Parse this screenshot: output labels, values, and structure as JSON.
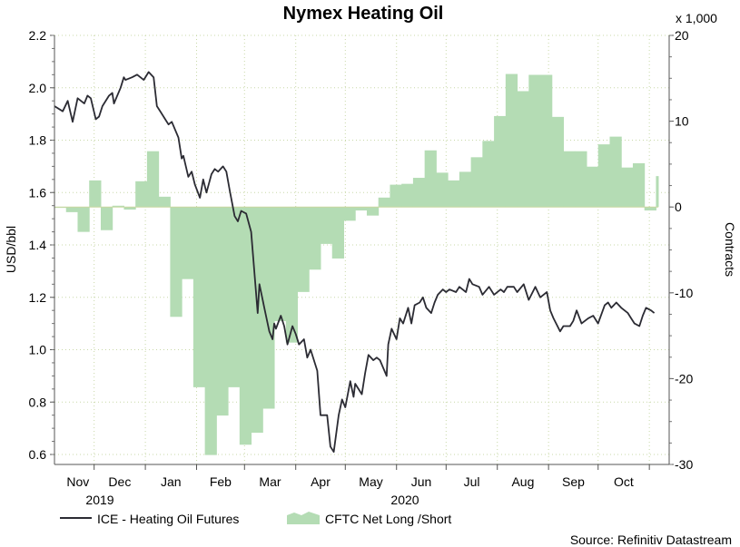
{
  "chart_data": {
    "type": "line+area",
    "title": "Nymex Heating Oil",
    "y_left": {
      "label": "USD/bbl",
      "range": [
        0.6,
        2.2
      ],
      "ticks": [
        "0.6",
        "0.8",
        "1.0",
        "1.2",
        "1.4",
        "1.6",
        "1.8",
        "2.0",
        "2.2"
      ]
    },
    "y_right": {
      "label": "Contracts",
      "multiplier_label": "x 1,000",
      "range": [
        -30,
        20
      ],
      "ticks": [
        "-30",
        "-20",
        "-10",
        "0",
        "10",
        "20"
      ]
    },
    "x_axis": {
      "range": [
        "2019-11-07",
        "2020-11-13"
      ],
      "months": [
        "Nov",
        "Dec",
        "Jan",
        "Feb",
        "Mar",
        "Apr",
        "May",
        "Jun",
        "Jul",
        "Aug",
        "Sep",
        "Oct"
      ],
      "month_starts": [
        "2019-11-01",
        "2019-12-01",
        "2020-01-01",
        "2020-02-01",
        "2020-03-01",
        "2020-04-01",
        "2020-05-01",
        "2020-06-01",
        "2020-07-01",
        "2020-08-01",
        "2020-09-01",
        "2020-10-01",
        "2020-11-01"
      ],
      "years": [
        "2019",
        "2020"
      ]
    },
    "grid": true,
    "legend": {
      "position": "bottom-left",
      "line_label": "ICE - Heating Oil Futures",
      "area_label": "CFTC Net Long /Short"
    },
    "source": "Source: Refinitiv Datastream",
    "colors": {
      "line": "#2b2b33",
      "area": "#b4dcb4",
      "grid": "#c8d8b0"
    },
    "series": [
      {
        "name": "ICE - Heating Oil Futures",
        "axis": "left",
        "type": "line",
        "points": [
          [
            "2019-11-07",
            1.93
          ],
          [
            "2019-11-12",
            1.91
          ],
          [
            "2019-11-15",
            1.95
          ],
          [
            "2019-11-18",
            1.87
          ],
          [
            "2019-11-21",
            1.96
          ],
          [
            "2019-11-25",
            1.94
          ],
          [
            "2019-11-27",
            1.97
          ],
          [
            "2019-11-29",
            1.96
          ],
          [
            "2019-12-02",
            1.88
          ],
          [
            "2019-12-04",
            1.89
          ],
          [
            "2019-12-06",
            1.93
          ],
          [
            "2019-12-10",
            1.97
          ],
          [
            "2019-12-12",
            1.98
          ],
          [
            "2019-12-13",
            1.94
          ],
          [
            "2019-12-17",
            2.0
          ],
          [
            "2019-12-19",
            2.04
          ],
          [
            "2019-12-20",
            2.03
          ],
          [
            "2019-12-24",
            2.04
          ],
          [
            "2019-12-27",
            2.05
          ],
          [
            "2019-12-31",
            2.03
          ],
          [
            "2020-01-03",
            2.06
          ],
          [
            "2020-01-06",
            2.04
          ],
          [
            "2020-01-08",
            1.93
          ],
          [
            "2020-01-10",
            1.91
          ],
          [
            "2020-01-13",
            1.88
          ],
          [
            "2020-01-15",
            1.86
          ],
          [
            "2020-01-17",
            1.87
          ],
          [
            "2020-01-21",
            1.81
          ],
          [
            "2020-01-23",
            1.73
          ],
          [
            "2020-01-24",
            1.74
          ],
          [
            "2020-01-27",
            1.66
          ],
          [
            "2020-01-29",
            1.68
          ],
          [
            "2020-01-31",
            1.63
          ],
          [
            "2020-02-03",
            1.58
          ],
          [
            "2020-02-05",
            1.65
          ],
          [
            "2020-02-07",
            1.6
          ],
          [
            "2020-02-10",
            1.67
          ],
          [
            "2020-02-12",
            1.69
          ],
          [
            "2020-02-14",
            1.68
          ],
          [
            "2020-02-17",
            1.7
          ],
          [
            "2020-02-19",
            1.68
          ],
          [
            "2020-02-21",
            1.61
          ],
          [
            "2020-02-24",
            1.51
          ],
          [
            "2020-02-26",
            1.49
          ],
          [
            "2020-02-28",
            1.53
          ],
          [
            "2020-03-02",
            1.52
          ],
          [
            "2020-03-05",
            1.45
          ],
          [
            "2020-03-09",
            1.14
          ],
          [
            "2020-03-10",
            1.25
          ],
          [
            "2020-03-12",
            1.19
          ],
          [
            "2020-03-13",
            1.16
          ],
          [
            "2020-03-16",
            1.07
          ],
          [
            "2020-03-18",
            1.04
          ],
          [
            "2020-03-19",
            1.1
          ],
          [
            "2020-03-20",
            1.08
          ],
          [
            "2020-03-23",
            1.13
          ],
          [
            "2020-03-25",
            1.09
          ],
          [
            "2020-03-27",
            1.02
          ],
          [
            "2020-03-30",
            1.09
          ],
          [
            "2020-04-01",
            1.06
          ],
          [
            "2020-04-03",
            1.02
          ],
          [
            "2020-04-06",
            1.04
          ],
          [
            "2020-04-08",
            0.97
          ],
          [
            "2020-04-10",
            1.0
          ],
          [
            "2020-04-14",
            0.92
          ],
          [
            "2020-04-16",
            0.75
          ],
          [
            "2020-04-20",
            0.75
          ],
          [
            "2020-04-22",
            0.63
          ],
          [
            "2020-04-24",
            0.61
          ],
          [
            "2020-04-27",
            0.75
          ],
          [
            "2020-04-29",
            0.81
          ],
          [
            "2020-05-01",
            0.78
          ],
          [
            "2020-05-04",
            0.88
          ],
          [
            "2020-05-06",
            0.82
          ],
          [
            "2020-05-07",
            0.87
          ],
          [
            "2020-05-11",
            0.83
          ],
          [
            "2020-05-13",
            0.91
          ],
          [
            "2020-05-15",
            0.98
          ],
          [
            "2020-05-18",
            0.96
          ],
          [
            "2020-05-20",
            0.97
          ],
          [
            "2020-05-22",
            0.96
          ],
          [
            "2020-05-26",
            0.9
          ],
          [
            "2020-05-27",
            1.02
          ],
          [
            "2020-05-29",
            1.08
          ],
          [
            "2020-06-01",
            1.04
          ],
          [
            "2020-06-03",
            1.12
          ],
          [
            "2020-06-05",
            1.1
          ],
          [
            "2020-06-08",
            1.16
          ],
          [
            "2020-06-10",
            1.1
          ],
          [
            "2020-06-12",
            1.17
          ],
          [
            "2020-06-15",
            1.18
          ],
          [
            "2020-06-17",
            1.2
          ],
          [
            "2020-06-19",
            1.16
          ],
          [
            "2020-06-22",
            1.14
          ],
          [
            "2020-06-24",
            1.18
          ],
          [
            "2020-06-26",
            1.21
          ],
          [
            "2020-06-29",
            1.23
          ],
          [
            "2020-07-01",
            1.22
          ],
          [
            "2020-07-03",
            1.23
          ],
          [
            "2020-07-07",
            1.22
          ],
          [
            "2020-07-09",
            1.24
          ],
          [
            "2020-07-13",
            1.22
          ],
          [
            "2020-07-15",
            1.27
          ],
          [
            "2020-07-17",
            1.25
          ],
          [
            "2020-07-21",
            1.24
          ],
          [
            "2020-07-23",
            1.21
          ],
          [
            "2020-07-27",
            1.24
          ],
          [
            "2020-07-30",
            1.21
          ],
          [
            "2020-08-03",
            1.23
          ],
          [
            "2020-08-05",
            1.22
          ],
          [
            "2020-08-07",
            1.24
          ],
          [
            "2020-08-11",
            1.24
          ],
          [
            "2020-08-13",
            1.22
          ],
          [
            "2020-08-17",
            1.25
          ],
          [
            "2020-08-20",
            1.19
          ],
          [
            "2020-08-24",
            1.24
          ],
          [
            "2020-08-27",
            1.2
          ],
          [
            "2020-08-31",
            1.22
          ],
          [
            "2020-09-02",
            1.15
          ],
          [
            "2020-09-04",
            1.12
          ],
          [
            "2020-09-08",
            1.07
          ],
          [
            "2020-09-10",
            1.09
          ],
          [
            "2020-09-14",
            1.09
          ],
          [
            "2020-09-16",
            1.11
          ],
          [
            "2020-09-18",
            1.15
          ],
          [
            "2020-09-21",
            1.1
          ],
          [
            "2020-09-25",
            1.12
          ],
          [
            "2020-09-28",
            1.13
          ],
          [
            "2020-10-01",
            1.1
          ],
          [
            "2020-10-05",
            1.17
          ],
          [
            "2020-10-07",
            1.18
          ],
          [
            "2020-10-09",
            1.16
          ],
          [
            "2020-10-12",
            1.18
          ],
          [
            "2020-10-15",
            1.16
          ],
          [
            "2020-10-19",
            1.14
          ],
          [
            "2020-10-21",
            1.12
          ],
          [
            "2020-10-23",
            1.1
          ],
          [
            "2020-10-26",
            1.09
          ],
          [
            "2020-10-28",
            1.13
          ],
          [
            "2020-10-30",
            1.16
          ],
          [
            "2020-11-02",
            1.15
          ],
          [
            "2020-11-04",
            1.14
          ]
        ]
      },
      {
        "name": "CFTC Net Long /Short",
        "axis": "right",
        "type": "area-step",
        "units": "thousand contracts",
        "start": "2019-11-07",
        "interval_days": 7,
        "values": [
          -0.1,
          -0.6,
          -2.9,
          3.1,
          -2.7,
          0.15,
          -0.3,
          3.0,
          6.5,
          1.2,
          -12.8,
          -8.4,
          -21,
          -28.9,
          -24.3,
          -21,
          -27.7,
          -26.3,
          -23.5,
          -13.3,
          -15.8,
          -9.9,
          -7.3,
          -4.3,
          -6.0,
          -1.6,
          -0.4,
          -1.0,
          1.1,
          2.6,
          2.7,
          3.4,
          6.6,
          4.0,
          3.1,
          4.1,
          5.8,
          7.7,
          10.6,
          15.5,
          13.5,
          15.4,
          15.4,
          10.5,
          6.5,
          6.5,
          4.7,
          7.3,
          8.2,
          4.6,
          5.1,
          -0.4,
          3.6
        ]
      }
    ]
  }
}
